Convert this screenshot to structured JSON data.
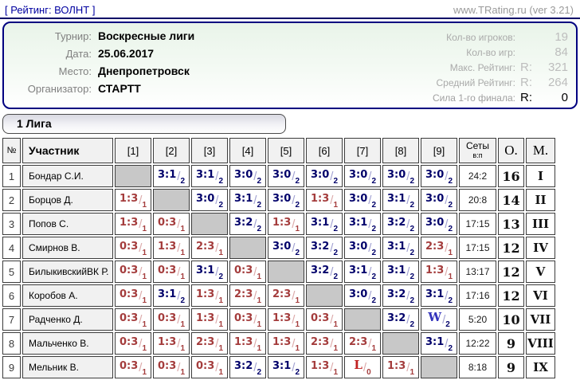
{
  "top_bar": {
    "left_link": "[ Рейтинг: ВОЛНТ ]",
    "right_link": "www.TRating.ru (ver 3.21)"
  },
  "info_panel": {
    "fields": [
      {
        "label": "Турнир:",
        "value": "Воскресные лиги"
      },
      {
        "label": "Дата:",
        "value": "25.06.2017"
      },
      {
        "label": "Место:",
        "value": "Днепропетровск"
      },
      {
        "label": "Организатор:",
        "value": "СТАРТТ"
      }
    ],
    "stats": [
      {
        "label": "Кол-во игроков:",
        "prefix": "",
        "value": "19",
        "strong": false
      },
      {
        "label": "Кол-во игр:",
        "prefix": "",
        "value": "84",
        "strong": false
      },
      {
        "label": "Макс. Рейтинг:",
        "prefix": "R:",
        "value": "321",
        "strong": false
      },
      {
        "label": "Средний Рейтинг:",
        "prefix": "R:",
        "value": "264",
        "strong": false
      },
      {
        "label": "Сила 1-го финала:",
        "prefix": "R:",
        "value": "0",
        "strong": true
      }
    ]
  },
  "league": {
    "title": "1 Лига",
    "table": {
      "num_header": "№",
      "name_header": "Участник",
      "match_cols": [
        "[1]",
        "[2]",
        "[3]",
        "[4]",
        "[5]",
        "[6]",
        "[7]",
        "[8]",
        "[9]"
      ],
      "sets_header": "Сеты",
      "sets_subheader": "в:п",
      "points_header": "О.",
      "place_header": "М.",
      "players": [
        {
          "num": "1",
          "name": "Бондар С.И.",
          "sets": "24:2",
          "points": "16",
          "place": "I",
          "cells": [
            {
              "t": "d"
            },
            {
              "t": "w",
              "s": "3:1",
              "p": "2"
            },
            {
              "t": "w",
              "s": "3:1",
              "p": "2"
            },
            {
              "t": "w",
              "s": "3:0",
              "p": "2"
            },
            {
              "t": "w",
              "s": "3:0",
              "p": "2"
            },
            {
              "t": "w",
              "s": "3:0",
              "p": "2"
            },
            {
              "t": "w",
              "s": "3:0",
              "p": "2"
            },
            {
              "t": "w",
              "s": "3:0",
              "p": "2"
            },
            {
              "t": "w",
              "s": "3:0",
              "p": "2"
            }
          ]
        },
        {
          "num": "2",
          "name": "Борцов Д.",
          "sets": "20:8",
          "points": "14",
          "place": "II",
          "cells": [
            {
              "t": "l",
              "s": "1:3",
              "p": "1"
            },
            {
              "t": "d"
            },
            {
              "t": "w",
              "s": "3:0",
              "p": "2"
            },
            {
              "t": "w",
              "s": "3:1",
              "p": "2"
            },
            {
              "t": "w",
              "s": "3:0",
              "p": "2"
            },
            {
              "t": "l",
              "s": "1:3",
              "p": "1"
            },
            {
              "t": "w",
              "s": "3:0",
              "p": "2"
            },
            {
              "t": "w",
              "s": "3:1",
              "p": "2"
            },
            {
              "t": "w",
              "s": "3:0",
              "p": "2"
            }
          ]
        },
        {
          "num": "3",
          "name": "Попов С.",
          "sets": "17:15",
          "points": "13",
          "place": "III",
          "cells": [
            {
              "t": "l",
              "s": "1:3",
              "p": "1"
            },
            {
              "t": "l",
              "s": "0:3",
              "p": "1"
            },
            {
              "t": "d"
            },
            {
              "t": "w",
              "s": "3:2",
              "p": "2"
            },
            {
              "t": "l",
              "s": "1:3",
              "p": "1"
            },
            {
              "t": "w",
              "s": "3:1",
              "p": "2"
            },
            {
              "t": "w",
              "s": "3:1",
              "p": "2"
            },
            {
              "t": "w",
              "s": "3:2",
              "p": "2"
            },
            {
              "t": "w",
              "s": "3:0",
              "p": "2"
            }
          ]
        },
        {
          "num": "4",
          "name": "Смирнов В.",
          "sets": "17:15",
          "points": "12",
          "place": "IV",
          "cells": [
            {
              "t": "l",
              "s": "0:3",
              "p": "1"
            },
            {
              "t": "l",
              "s": "1:3",
              "p": "1"
            },
            {
              "t": "l",
              "s": "2:3",
              "p": "1"
            },
            {
              "t": "d"
            },
            {
              "t": "w",
              "s": "3:0",
              "p": "2"
            },
            {
              "t": "w",
              "s": "3:2",
              "p": "2"
            },
            {
              "t": "w",
              "s": "3:0",
              "p": "2"
            },
            {
              "t": "w",
              "s": "3:1",
              "p": "2"
            },
            {
              "t": "l",
              "s": "2:3",
              "p": "1"
            }
          ]
        },
        {
          "num": "5",
          "name": "БилыкивскийВК Р.",
          "sets": "13:17",
          "points": "12",
          "place": "V",
          "cells": [
            {
              "t": "l",
              "s": "0:3",
              "p": "1"
            },
            {
              "t": "l",
              "s": "0:3",
              "p": "1"
            },
            {
              "t": "w",
              "s": "3:1",
              "p": "2"
            },
            {
              "t": "l",
              "s": "0:3",
              "p": "1"
            },
            {
              "t": "d"
            },
            {
              "t": "w",
              "s": "3:2",
              "p": "2"
            },
            {
              "t": "w",
              "s": "3:1",
              "p": "2"
            },
            {
              "t": "w",
              "s": "3:1",
              "p": "2"
            },
            {
              "t": "l",
              "s": "1:3",
              "p": "1"
            }
          ]
        },
        {
          "num": "6",
          "name": "Коробов А.",
          "sets": "17:16",
          "points": "12",
          "place": "VI",
          "cells": [
            {
              "t": "l",
              "s": "0:3",
              "p": "1"
            },
            {
              "t": "w",
              "s": "3:1",
              "p": "2"
            },
            {
              "t": "l",
              "s": "1:3",
              "p": "1"
            },
            {
              "t": "l",
              "s": "2:3",
              "p": "1"
            },
            {
              "t": "l",
              "s": "2:3",
              "p": "1"
            },
            {
              "t": "d"
            },
            {
              "t": "w",
              "s": "3:0",
              "p": "2"
            },
            {
              "t": "w",
              "s": "3:2",
              "p": "2"
            },
            {
              "t": "w",
              "s": "3:1",
              "p": "2"
            }
          ]
        },
        {
          "num": "7",
          "name": "Радченко Д.",
          "sets": "5:20",
          "points": "10",
          "place": "VII",
          "cells": [
            {
              "t": "l",
              "s": "0:3",
              "p": "1"
            },
            {
              "t": "l",
              "s": "0:3",
              "p": "1"
            },
            {
              "t": "l",
              "s": "1:3",
              "p": "1"
            },
            {
              "t": "l",
              "s": "0:3",
              "p": "1"
            },
            {
              "t": "l",
              "s": "1:3",
              "p": "1"
            },
            {
              "t": "l",
              "s": "0:3",
              "p": "1"
            },
            {
              "t": "d"
            },
            {
              "t": "w",
              "s": "3:2",
              "p": "2"
            },
            {
              "t": "w",
              "s": "W",
              "p": "2",
              "f": true
            }
          ]
        },
        {
          "num": "8",
          "name": "Мальченко В.",
          "sets": "12:22",
          "points": "9",
          "place": "VIII",
          "cells": [
            {
              "t": "l",
              "s": "0:3",
              "p": "1"
            },
            {
              "t": "l",
              "s": "1:3",
              "p": "1"
            },
            {
              "t": "l",
              "s": "2:3",
              "p": "1"
            },
            {
              "t": "l",
              "s": "1:3",
              "p": "1"
            },
            {
              "t": "l",
              "s": "1:3",
              "p": "1"
            },
            {
              "t": "l",
              "s": "2:3",
              "p": "1"
            },
            {
              "t": "l",
              "s": "2:3",
              "p": "1"
            },
            {
              "t": "d"
            },
            {
              "t": "w",
              "s": "3:1",
              "p": "2"
            }
          ]
        },
        {
          "num": "9",
          "name": "Мельник В.",
          "sets": "8:18",
          "points": "9",
          "place": "IX",
          "cells": [
            {
              "t": "l",
              "s": "0:3",
              "p": "1"
            },
            {
              "t": "l",
              "s": "0:3",
              "p": "1"
            },
            {
              "t": "l",
              "s": "0:3",
              "p": "1"
            },
            {
              "t": "w",
              "s": "3:2",
              "p": "2"
            },
            {
              "t": "w",
              "s": "3:1",
              "p": "2"
            },
            {
              "t": "l",
              "s": "1:3",
              "p": "1"
            },
            {
              "t": "l",
              "s": "L",
              "p": "0",
              "f": true
            },
            {
              "t": "l",
              "s": "1:3",
              "p": "1"
            },
            {
              "t": "d"
            }
          ]
        }
      ]
    }
  },
  "colors": {
    "accent_navy": "#0000a0",
    "panel_border": "#000080",
    "win_score": "#00006a",
    "loss_score": "#a43c3c",
    "diagonal_cell": "#c8c8c8",
    "panel_bg_top": "#e9f4e9"
  }
}
